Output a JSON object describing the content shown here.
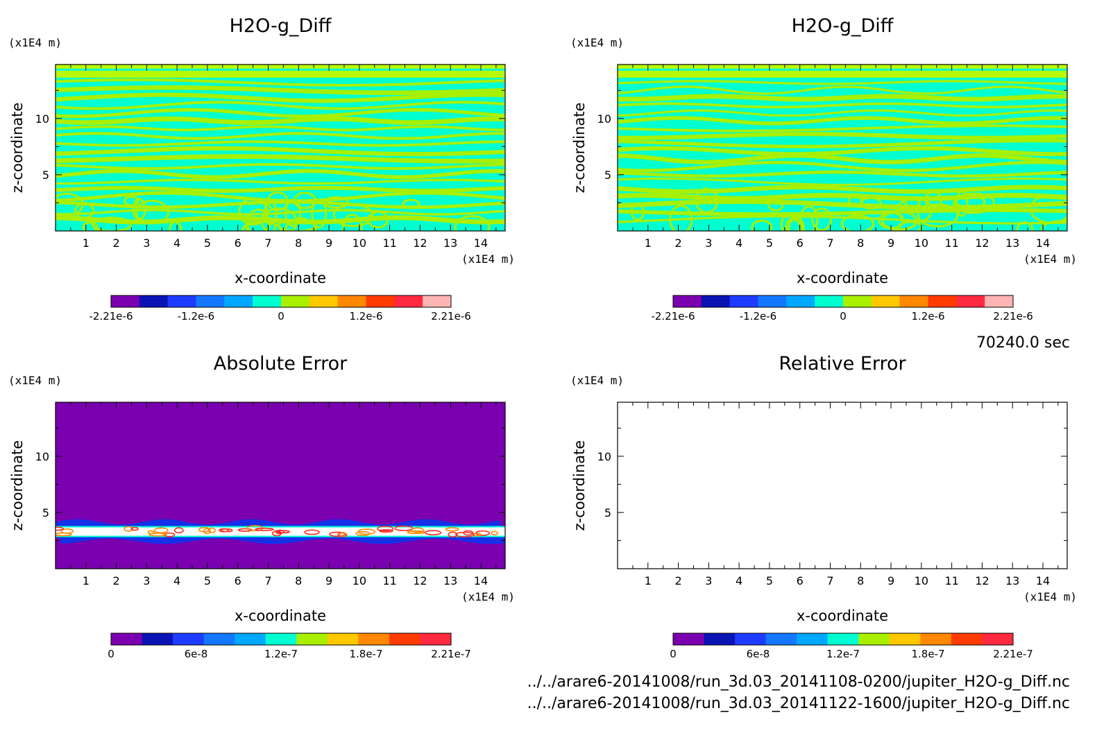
{
  "colors": {
    "cyan": "#00ffd0",
    "green": "#a8f000",
    "light_green": "#b8f800",
    "purple": "#7b00b0",
    "blue": "#1530e8",
    "white": "#ffffff",
    "orange": "#ff8800",
    "red": "#ff2a20",
    "red2": "#ff4040"
  },
  "chart_data": [
    {
      "type": "heatmap",
      "title": "H2O-g_Diff",
      "xlabel": "x-coordinate",
      "ylabel": "z-coordinate",
      "x_unit": "(x1E4 m)",
      "y_unit": "(x1E4 m)",
      "xlim": [
        0,
        14.8
      ],
      "ylim": [
        0,
        14.8
      ],
      "xticks": [
        "1",
        "2",
        "3",
        "4",
        "5",
        "6",
        "7",
        "8",
        "9",
        "10",
        "11",
        "12",
        "13",
        "14"
      ],
      "yticks": [
        "5",
        "10"
      ],
      "colorbar": {
        "labels": [
          "-2.21e-6",
          "-1.2e-6",
          "0",
          "1.2e-6",
          "2.21e-6"
        ],
        "colors": [
          "#7b00b0",
          "#0a14b4",
          "#1e3cff",
          "#1478ff",
          "#00a8ff",
          "#00ffd0",
          "#a8f000",
          "#ffc800",
          "#ff8800",
          "#ff3c00",
          "#ff2a40",
          "#ffb4b4"
        ]
      },
      "fill": "diff"
    },
    {
      "type": "heatmap",
      "title": "H2O-g_Diff",
      "xlabel": "x-coordinate",
      "ylabel": "z-coordinate",
      "x_unit": "(x1E4 m)",
      "y_unit": "(x1E4 m)",
      "xlim": [
        0,
        14.8
      ],
      "ylim": [
        0,
        14.8
      ],
      "xticks": [
        "1",
        "2",
        "3",
        "4",
        "5",
        "6",
        "7",
        "8",
        "9",
        "10",
        "11",
        "12",
        "13",
        "14"
      ],
      "yticks": [
        "5",
        "10"
      ],
      "colorbar": {
        "labels": [
          "-2.21e-6",
          "-1.2e-6",
          "0",
          "1.2e-6",
          "2.21e-6"
        ],
        "colors": [
          "#7b00b0",
          "#0a14b4",
          "#1e3cff",
          "#1478ff",
          "#00a8ff",
          "#00ffd0",
          "#a8f000",
          "#ffc800",
          "#ff8800",
          "#ff3c00",
          "#ff2a40",
          "#ffb4b4"
        ]
      },
      "fill": "diff"
    },
    {
      "type": "heatmap",
      "title": "Absolute Error",
      "xlabel": "x-coordinate",
      "ylabel": "z-coordinate",
      "x_unit": "(x1E4 m)",
      "y_unit": "(x1E4 m)",
      "xlim": [
        0,
        14.8
      ],
      "ylim": [
        0,
        14.8
      ],
      "xticks": [
        "1",
        "2",
        "3",
        "4",
        "5",
        "6",
        "7",
        "8",
        "9",
        "10",
        "11",
        "12",
        "13",
        "14"
      ],
      "yticks": [
        "5",
        "10"
      ],
      "colorbar": {
        "labels": [
          "0",
          "6e-8",
          "1.2e-7",
          "1.8e-7",
          "2.21e-7"
        ],
        "colors": [
          "#7b00b0",
          "#0a14b4",
          "#1e3cff",
          "#1478ff",
          "#00a8ff",
          "#00ffd0",
          "#a8f000",
          "#ffc800",
          "#ff8800",
          "#ff3c00",
          "#ff2a40"
        ]
      },
      "fill": "abs"
    },
    {
      "type": "heatmap",
      "title": "Relative Error",
      "xlabel": "x-coordinate",
      "ylabel": "z-coordinate",
      "x_unit": "(x1E4 m)",
      "y_unit": "(x1E4 m)",
      "xlim": [
        0,
        14.8
      ],
      "ylim": [
        0,
        14.8
      ],
      "xticks": [
        "1",
        "2",
        "3",
        "4",
        "5",
        "6",
        "7",
        "8",
        "9",
        "10",
        "11",
        "12",
        "13",
        "14"
      ],
      "yticks": [
        "5",
        "10"
      ],
      "colorbar": {
        "labels": [
          "0",
          "6e-8",
          "1.2e-7",
          "1.8e-7",
          "2.21e-7"
        ],
        "colors": [
          "#7b00b0",
          "#0a14b4",
          "#1e3cff",
          "#1478ff",
          "#00a8ff",
          "#00ffd0",
          "#a8f000",
          "#ffc800",
          "#ff8800",
          "#ff3c00",
          "#ff2a40"
        ]
      },
      "fill": "none"
    }
  ],
  "time_label": "70240.0 sec",
  "footer": {
    "file1": "../../arare6-20141008/run_3d.03_20141108-0200/jupiter_H2O-g_Diff.nc",
    "file2": "../../arare6-20141008/run_3d.03_20141122-1600/jupiter_H2O-g_Diff.nc"
  }
}
